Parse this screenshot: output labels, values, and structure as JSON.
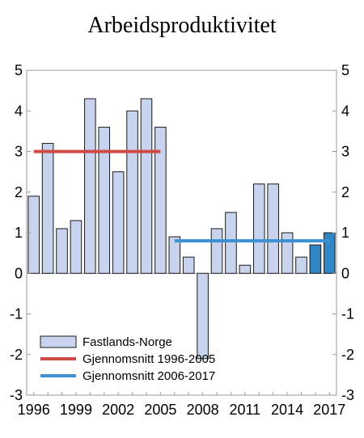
{
  "chart_data": {
    "type": "bar",
    "title": "Arbeidsproduktivitet",
    "xlabel": "",
    "ylabel": "",
    "ylim": [
      -3,
      5
    ],
    "yticks": [
      5,
      4,
      3,
      2,
      1,
      0,
      -1,
      -2,
      -3
    ],
    "categories": [
      "1996",
      "1997",
      "1998",
      "1999",
      "2000",
      "2001",
      "2002",
      "2003",
      "2004",
      "2005",
      "2006",
      "2007",
      "2008",
      "2009",
      "2010",
      "2011",
      "2012",
      "2013",
      "2014",
      "2015",
      "2016",
      "2017"
    ],
    "x_tick_labels": [
      "1996",
      "1999",
      "2002",
      "2005",
      "2008",
      "2011",
      "2014",
      "2017"
    ],
    "series": [
      {
        "name": "Fastlands-Norge",
        "values": [
          1.9,
          3.2,
          1.1,
          1.3,
          4.3,
          3.6,
          2.5,
          4.0,
          4.3,
          3.6,
          0.9,
          0.4,
          -2.1,
          1.1,
          1.5,
          0.2,
          2.2,
          2.2,
          1.0,
          0.4,
          0.7,
          1.0
        ],
        "fill": "#c8d4ee",
        "highlight_fill": "#2f86c6",
        "highlight_categories": [
          "2016",
          "2017"
        ]
      }
    ],
    "lines": [
      {
        "name": "Gjennomsnitt 1996-2005",
        "value": 3.0,
        "from": "1996",
        "to": "2005",
        "color": "#cf4a45"
      },
      {
        "name": "Gjennomsnitt 2006-2017",
        "value": 0.8,
        "from": "2006",
        "to": "2017",
        "color": "#3e92d3"
      }
    ],
    "legend": {
      "position": "bottom-left",
      "entries": [
        "Fastlands-Norge",
        "Gjennomsnitt 1996-2005",
        "Gjennomsnitt 2006-2017"
      ]
    },
    "grid": false
  }
}
